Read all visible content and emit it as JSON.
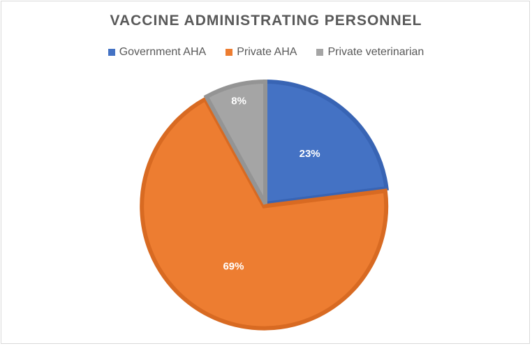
{
  "chart_data": {
    "type": "pie",
    "title": "VACCINE ADMINISTRATING PERSONNEL",
    "categories": [
      "Government AHA",
      "Private AHA",
      "Private veterinarian"
    ],
    "values": [
      23,
      69,
      8
    ],
    "labels": [
      "23%",
      "69%",
      "8%"
    ],
    "colors": [
      "#4472c4",
      "#ed7d31",
      "#a5a5a5"
    ],
    "border_colors": [
      "#3864b4",
      "#d86a22",
      "#949494"
    ],
    "exploded": "Private AHA",
    "legend_position": "top"
  }
}
